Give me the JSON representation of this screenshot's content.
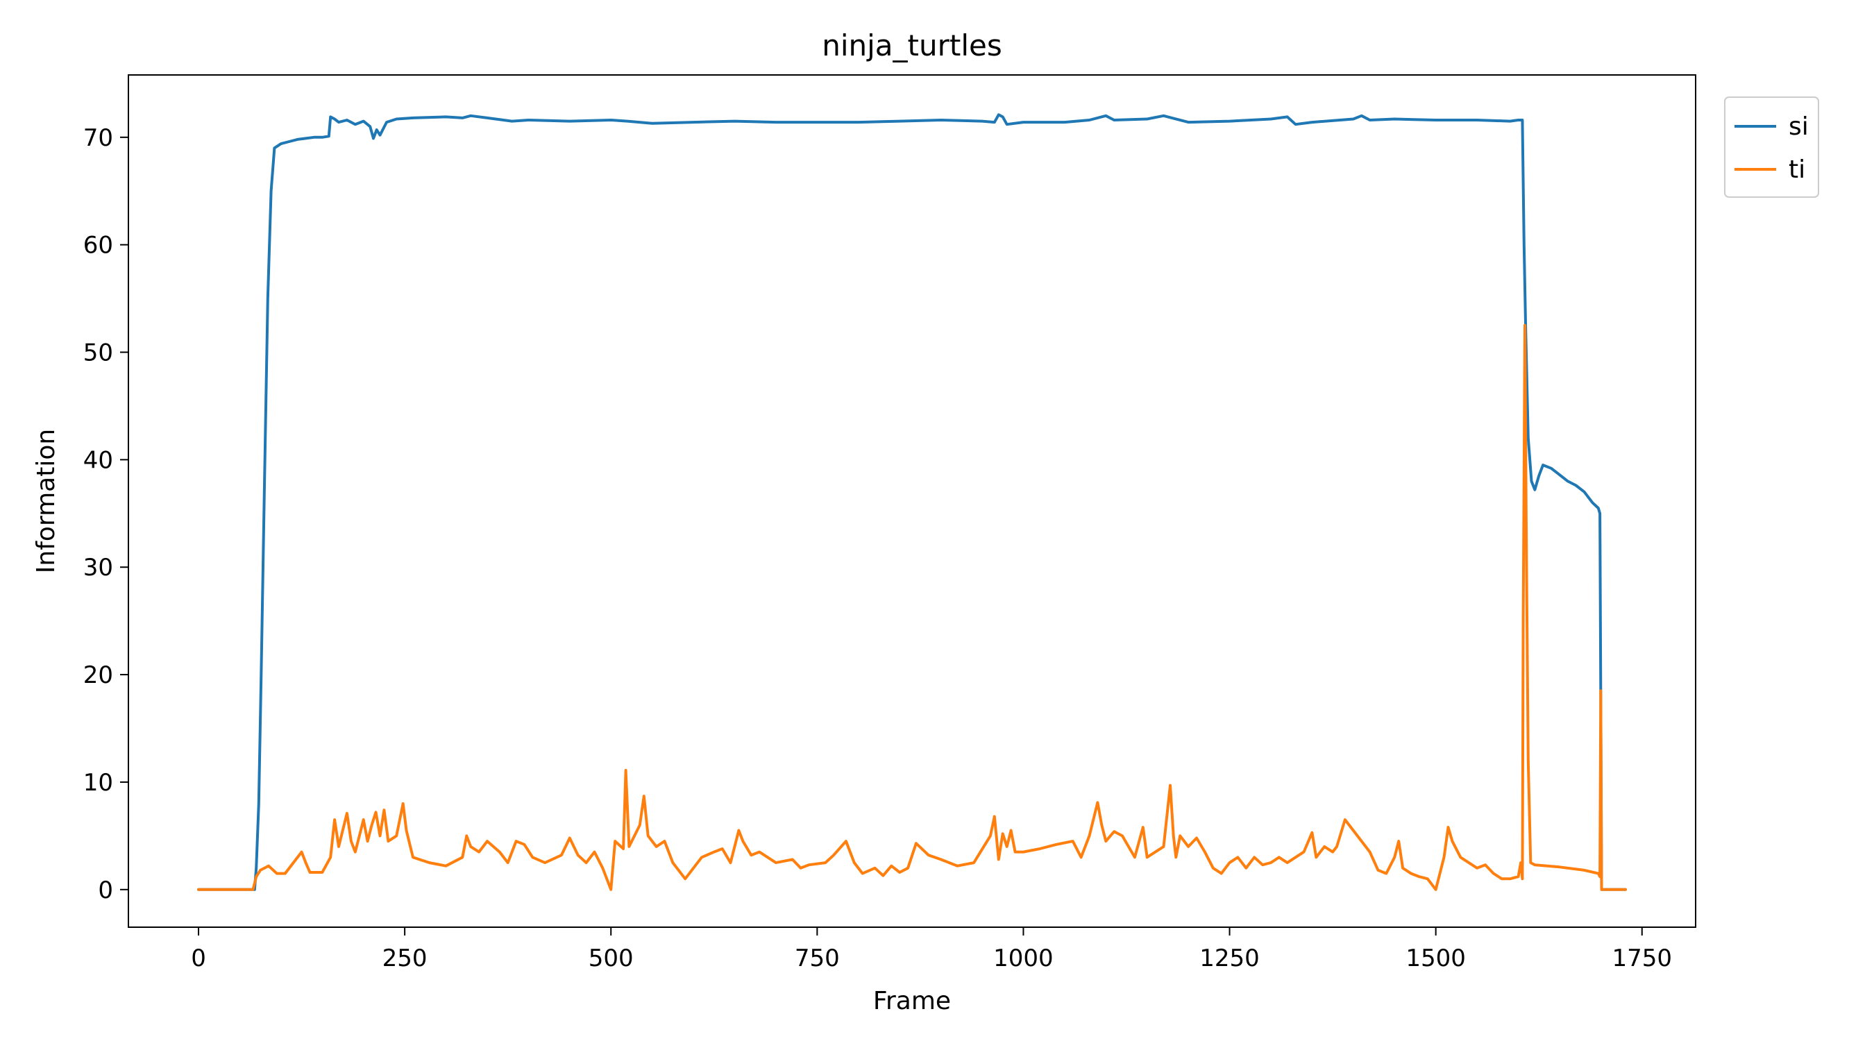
{
  "chart_data": {
    "type": "line",
    "title": "ninja_turtles",
    "xlabel": "Frame",
    "ylabel": "Information",
    "xlim": [
      -85,
      1815
    ],
    "ylim": [
      -3.5,
      75.8
    ],
    "xticks": [
      0,
      250,
      500,
      750,
      1000,
      1250,
      1500,
      1750
    ],
    "yticks": [
      0,
      10,
      20,
      30,
      40,
      50,
      60,
      70
    ],
    "grid": false,
    "legend_position": "upper right, outside plot",
    "series": [
      {
        "name": "si",
        "color": "#1f77b4",
        "points": [
          [
            0,
            0
          ],
          [
            68,
            0
          ],
          [
            70,
            2
          ],
          [
            73,
            8
          ],
          [
            76,
            20
          ],
          [
            80,
            38
          ],
          [
            84,
            55
          ],
          [
            88,
            65
          ],
          [
            92,
            69
          ],
          [
            100,
            69.4
          ],
          [
            110,
            69.6
          ],
          [
            120,
            69.8
          ],
          [
            130,
            69.9
          ],
          [
            140,
            70
          ],
          [
            150,
            70
          ],
          [
            158,
            70.1
          ],
          [
            160,
            71.9
          ],
          [
            165,
            71.7
          ],
          [
            170,
            71.4
          ],
          [
            180,
            71.6
          ],
          [
            190,
            71.2
          ],
          [
            200,
            71.5
          ],
          [
            208,
            71
          ],
          [
            212,
            69.9
          ],
          [
            216,
            70.7
          ],
          [
            220,
            70.2
          ],
          [
            228,
            71.4
          ],
          [
            240,
            71.7
          ],
          [
            260,
            71.8
          ],
          [
            300,
            71.9
          ],
          [
            320,
            71.8
          ],
          [
            330,
            72
          ],
          [
            350,
            71.8
          ],
          [
            380,
            71.5
          ],
          [
            400,
            71.6
          ],
          [
            450,
            71.5
          ],
          [
            500,
            71.6
          ],
          [
            520,
            71.5
          ],
          [
            550,
            71.3
          ],
          [
            600,
            71.4
          ],
          [
            650,
            71.5
          ],
          [
            700,
            71.4
          ],
          [
            750,
            71.4
          ],
          [
            800,
            71.4
          ],
          [
            850,
            71.5
          ],
          [
            900,
            71.6
          ],
          [
            950,
            71.5
          ],
          [
            965,
            71.4
          ],
          [
            970,
            72.1
          ],
          [
            975,
            71.9
          ],
          [
            980,
            71.2
          ],
          [
            1000,
            71.4
          ],
          [
            1050,
            71.4
          ],
          [
            1080,
            71.6
          ],
          [
            1100,
            72
          ],
          [
            1110,
            71.6
          ],
          [
            1150,
            71.7
          ],
          [
            1170,
            72
          ],
          [
            1180,
            71.8
          ],
          [
            1200,
            71.4
          ],
          [
            1250,
            71.5
          ],
          [
            1300,
            71.7
          ],
          [
            1320,
            71.9
          ],
          [
            1330,
            71.2
          ],
          [
            1350,
            71.4
          ],
          [
            1400,
            71.7
          ],
          [
            1410,
            72
          ],
          [
            1420,
            71.6
          ],
          [
            1450,
            71.7
          ],
          [
            1500,
            71.6
          ],
          [
            1550,
            71.6
          ],
          [
            1590,
            71.5
          ],
          [
            1600,
            71.6
          ],
          [
            1605,
            71.6
          ],
          [
            1607,
            60
          ],
          [
            1609,
            52
          ],
          [
            1612,
            42
          ],
          [
            1616,
            38
          ],
          [
            1620,
            37.2
          ],
          [
            1625,
            38.5
          ],
          [
            1630,
            39.5
          ],
          [
            1640,
            39.2
          ],
          [
            1650,
            38.6
          ],
          [
            1660,
            38
          ],
          [
            1670,
            37.6
          ],
          [
            1680,
            37
          ],
          [
            1690,
            36
          ],
          [
            1697,
            35.5
          ],
          [
            1699,
            35
          ],
          [
            1700,
            18.5
          ],
          [
            1701,
            0
          ],
          [
            1730,
            0
          ]
        ]
      },
      {
        "name": "ti",
        "color": "#ff7f0e",
        "points": [
          [
            0,
            0
          ],
          [
            66,
            0
          ],
          [
            70,
            1.2
          ],
          [
            75,
            1.8
          ],
          [
            85,
            2.2
          ],
          [
            95,
            1.5
          ],
          [
            105,
            1.5
          ],
          [
            115,
            2.5
          ],
          [
            125,
            3.5
          ],
          [
            130,
            2.5
          ],
          [
            135,
            1.6
          ],
          [
            150,
            1.6
          ],
          [
            160,
            3
          ],
          [
            165,
            6.5
          ],
          [
            170,
            4
          ],
          [
            180,
            7.1
          ],
          [
            185,
            4.5
          ],
          [
            190,
            3.5
          ],
          [
            195,
            5
          ],
          [
            200,
            6.5
          ],
          [
            205,
            4.5
          ],
          [
            210,
            6
          ],
          [
            215,
            7.2
          ],
          [
            220,
            5
          ],
          [
            225,
            7.4
          ],
          [
            230,
            4.5
          ],
          [
            240,
            5
          ],
          [
            248,
            8
          ],
          [
            252,
            5.5
          ],
          [
            260,
            3
          ],
          [
            280,
            2.5
          ],
          [
            300,
            2.2
          ],
          [
            320,
            3
          ],
          [
            325,
            5
          ],
          [
            330,
            4
          ],
          [
            340,
            3.5
          ],
          [
            350,
            4.5
          ],
          [
            365,
            3.5
          ],
          [
            375,
            2.5
          ],
          [
            385,
            4.5
          ],
          [
            395,
            4.2
          ],
          [
            405,
            3
          ],
          [
            420,
            2.5
          ],
          [
            440,
            3.2
          ],
          [
            450,
            4.8
          ],
          [
            460,
            3.2
          ],
          [
            470,
            2.5
          ],
          [
            480,
            3.5
          ],
          [
            490,
            2
          ],
          [
            500,
            0
          ],
          [
            505,
            4.5
          ],
          [
            515,
            3.8
          ],
          [
            518,
            11.1
          ],
          [
            522,
            4
          ],
          [
            535,
            6
          ],
          [
            540,
            8.7
          ],
          [
            545,
            5
          ],
          [
            555,
            4
          ],
          [
            565,
            4.5
          ],
          [
            575,
            2.5
          ],
          [
            590,
            1
          ],
          [
            600,
            2
          ],
          [
            610,
            3
          ],
          [
            625,
            3.5
          ],
          [
            635,
            3.8
          ],
          [
            645,
            2.5
          ],
          [
            655,
            5.5
          ],
          [
            660,
            4.5
          ],
          [
            670,
            3.2
          ],
          [
            680,
            3.5
          ],
          [
            700,
            2.5
          ],
          [
            720,
            2.8
          ],
          [
            730,
            2
          ],
          [
            740,
            2.3
          ],
          [
            760,
            2.5
          ],
          [
            770,
            3.2
          ],
          [
            785,
            4.5
          ],
          [
            795,
            2.5
          ],
          [
            805,
            1.5
          ],
          [
            820,
            2
          ],
          [
            830,
            1.3
          ],
          [
            840,
            2.2
          ],
          [
            850,
            1.6
          ],
          [
            860,
            2
          ],
          [
            870,
            4.3
          ],
          [
            885,
            3.2
          ],
          [
            900,
            2.8
          ],
          [
            920,
            2.2
          ],
          [
            940,
            2.5
          ],
          [
            960,
            5
          ],
          [
            965,
            6.8
          ],
          [
            970,
            2.8
          ],
          [
            975,
            5.2
          ],
          [
            980,
            4
          ],
          [
            985,
            5.5
          ],
          [
            990,
            3.5
          ],
          [
            1000,
            3.5
          ],
          [
            1020,
            3.8
          ],
          [
            1040,
            4.2
          ],
          [
            1060,
            4.5
          ],
          [
            1070,
            3
          ],
          [
            1080,
            5
          ],
          [
            1090,
            8.1
          ],
          [
            1095,
            6
          ],
          [
            1100,
            4.5
          ],
          [
            1110,
            5.4
          ],
          [
            1120,
            5
          ],
          [
            1135,
            3
          ],
          [
            1145,
            5.8
          ],
          [
            1150,
            3
          ],
          [
            1160,
            3.5
          ],
          [
            1170,
            4
          ],
          [
            1178,
            9.7
          ],
          [
            1182,
            5
          ],
          [
            1185,
            3
          ],
          [
            1190,
            5
          ],
          [
            1200,
            4
          ],
          [
            1210,
            4.8
          ],
          [
            1220,
            3.5
          ],
          [
            1230,
            2
          ],
          [
            1240,
            1.5
          ],
          [
            1250,
            2.5
          ],
          [
            1260,
            3
          ],
          [
            1270,
            2
          ],
          [
            1280,
            3
          ],
          [
            1290,
            2.3
          ],
          [
            1300,
            2.5
          ],
          [
            1310,
            3
          ],
          [
            1320,
            2.5
          ],
          [
            1340,
            3.5
          ],
          [
            1350,
            5.3
          ],
          [
            1355,
            3
          ],
          [
            1365,
            4
          ],
          [
            1375,
            3.5
          ],
          [
            1380,
            4
          ],
          [
            1390,
            6.5
          ],
          [
            1400,
            5.5
          ],
          [
            1410,
            4.5
          ],
          [
            1420,
            3.5
          ],
          [
            1430,
            1.8
          ],
          [
            1440,
            1.5
          ],
          [
            1450,
            3
          ],
          [
            1455,
            4.5
          ],
          [
            1460,
            2
          ],
          [
            1470,
            1.5
          ],
          [
            1480,
            1.2
          ],
          [
            1490,
            1
          ],
          [
            1500,
            0
          ],
          [
            1510,
            3
          ],
          [
            1515,
            5.8
          ],
          [
            1520,
            4.5
          ],
          [
            1530,
            3
          ],
          [
            1540,
            2.5
          ],
          [
            1550,
            2
          ],
          [
            1560,
            2.3
          ],
          [
            1570,
            1.5
          ],
          [
            1580,
            1
          ],
          [
            1590,
            1
          ],
          [
            1600,
            1.2
          ],
          [
            1603,
            2.5
          ],
          [
            1605,
            1
          ],
          [
            1606,
            25
          ],
          [
            1608,
            52.5
          ],
          [
            1610,
            30
          ],
          [
            1612,
            12
          ],
          [
            1615,
            2.5
          ],
          [
            1620,
            2.3
          ],
          [
            1650,
            2.1
          ],
          [
            1680,
            1.8
          ],
          [
            1697,
            1.5
          ],
          [
            1699,
            1.2
          ],
          [
            1700,
            18.5
          ],
          [
            1701,
            0
          ],
          [
            1730,
            0
          ]
        ]
      }
    ]
  }
}
